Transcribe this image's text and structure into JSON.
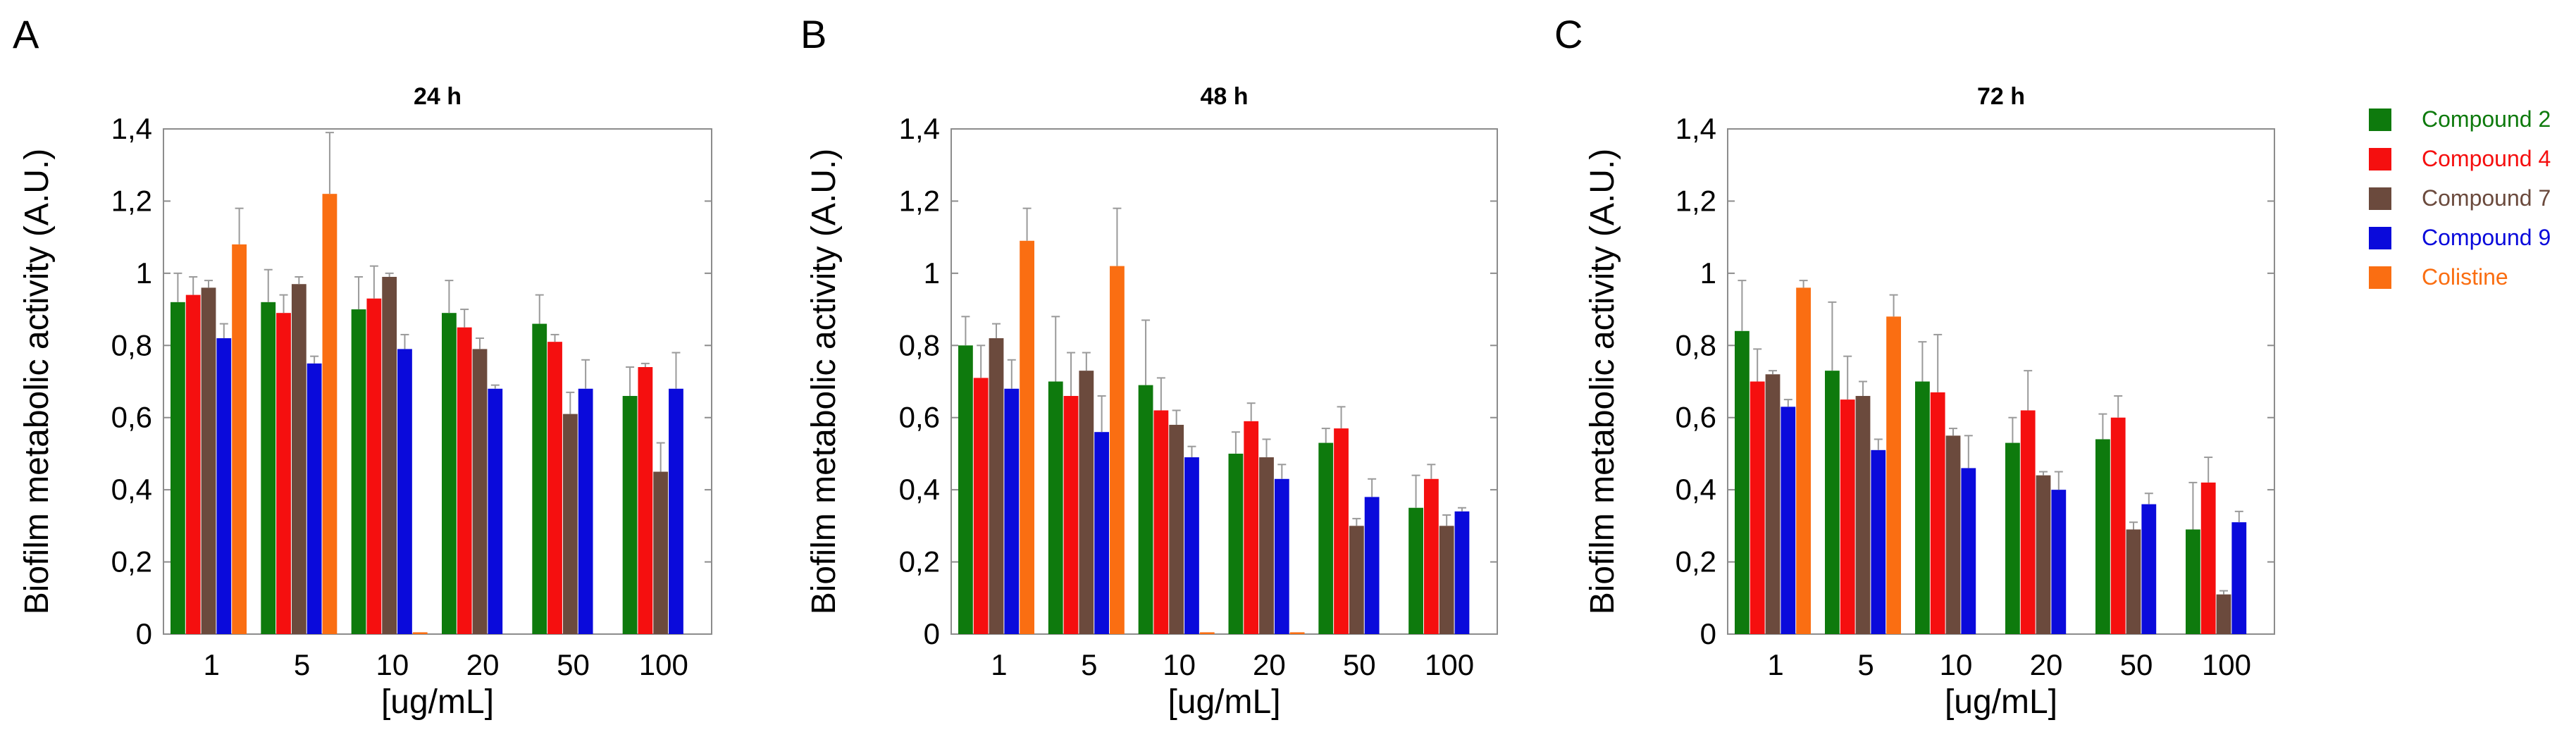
{
  "colors": {
    "compound_2": "#0E7A0D",
    "compound_4": "#F50F0F",
    "compound_7": "#6B4A3D",
    "compound_9": "#0A0ADB",
    "colistine": "#FA6E12",
    "axis": "#8C8C8C",
    "error_bar": "#9A9A9A"
  },
  "chart_data": [
    {
      "type": "bar",
      "panel": "A",
      "title": "24 h",
      "xlabel": "[ug/mL]",
      "ylabel": "Biofilm metabolic activity  (A.U.)",
      "ylim": [
        0,
        1.4
      ],
      "yticks": [
        "0",
        "0,2",
        "0,4",
        "0,6",
        "0,8",
        "1",
        "1,2",
        "1,4"
      ],
      "categories": [
        "1",
        "5",
        "10",
        "20",
        "50",
        "100"
      ],
      "grid": false,
      "series": [
        {
          "name": "Compound 2",
          "color_key": "compound_2",
          "values": [
            0.92,
            0.92,
            0.9,
            0.89,
            0.86,
            0.66
          ],
          "errors": [
            0.08,
            0.09,
            0.09,
            0.09,
            0.08,
            0.08
          ]
        },
        {
          "name": "Compound 4",
          "color_key": "compound_4",
          "values": [
            0.94,
            0.89,
            0.93,
            0.85,
            0.81,
            0.74
          ],
          "errors": [
            0.05,
            0.05,
            0.09,
            0.05,
            0.02,
            0.01
          ]
        },
        {
          "name": "Compound 7",
          "color_key": "compound_7",
          "values": [
            0.96,
            0.97,
            0.99,
            0.79,
            0.61,
            0.45
          ],
          "errors": [
            0.02,
            0.02,
            0.01,
            0.03,
            0.06,
            0.08
          ]
        },
        {
          "name": "Compound 9",
          "color_key": "compound_9",
          "values": [
            0.82,
            0.75,
            0.79,
            0.68,
            0.68,
            0.68
          ],
          "errors": [
            0.04,
            0.02,
            0.04,
            0.01,
            0.08,
            0.1
          ]
        },
        {
          "name": "Colistine",
          "color_key": "colistine",
          "values": [
            1.08,
            1.22,
            0.005,
            0.0,
            0.0,
            0.0
          ],
          "errors": [
            0.1,
            0.17,
            0,
            0,
            0,
            0
          ]
        }
      ]
    },
    {
      "type": "bar",
      "panel": "B",
      "title": "48 h",
      "xlabel": "[ug/mL]",
      "ylabel": "Biofilm metabolic activity  (A.U.)",
      "ylim": [
        0,
        1.4
      ],
      "yticks": [
        "0",
        "0,2",
        "0,4",
        "0,6",
        "0,8",
        "1",
        "1,2",
        "1,4"
      ],
      "categories": [
        "1",
        "5",
        "10",
        "20",
        "50",
        "100"
      ],
      "grid": false,
      "series": [
        {
          "name": "Compound 2",
          "color_key": "compound_2",
          "values": [
            0.8,
            0.7,
            0.69,
            0.5,
            0.53,
            0.35
          ],
          "errors": [
            0.08,
            0.18,
            0.18,
            0.06,
            0.04,
            0.09
          ]
        },
        {
          "name": "Compound 4",
          "color_key": "compound_4",
          "values": [
            0.71,
            0.66,
            0.62,
            0.59,
            0.57,
            0.43
          ],
          "errors": [
            0.09,
            0.12,
            0.09,
            0.05,
            0.06,
            0.04
          ]
        },
        {
          "name": "Compound 7",
          "color_key": "compound_7",
          "values": [
            0.82,
            0.73,
            0.58,
            0.49,
            0.3,
            0.3
          ],
          "errors": [
            0.04,
            0.05,
            0.04,
            0.05,
            0.02,
            0.03
          ]
        },
        {
          "name": "Compound 9",
          "color_key": "compound_9",
          "values": [
            0.68,
            0.56,
            0.49,
            0.43,
            0.38,
            0.34
          ],
          "errors": [
            0.08,
            0.1,
            0.03,
            0.04,
            0.05,
            0.01
          ]
        },
        {
          "name": "Colistine",
          "color_key": "colistine",
          "values": [
            1.09,
            1.02,
            0.005,
            0.005,
            0.0,
            0.0
          ],
          "errors": [
            0.09,
            0.16,
            0,
            0,
            0,
            0
          ]
        }
      ]
    },
    {
      "type": "bar",
      "panel": "C",
      "title": "72 h",
      "xlabel": "[ug/mL]",
      "ylabel": "Biofilm metabolic activity  (A.U.)",
      "ylim": [
        0,
        1.4
      ],
      "yticks": [
        "0",
        "0,2",
        "0,4",
        "0,6",
        "0,8",
        "1",
        "1,2",
        "1,4"
      ],
      "categories": [
        "1",
        "5",
        "10",
        "20",
        "50",
        "100"
      ],
      "grid": false,
      "series": [
        {
          "name": "Compound 2",
          "color_key": "compound_2",
          "values": [
            0.84,
            0.73,
            0.7,
            0.53,
            0.54,
            0.29
          ],
          "errors": [
            0.14,
            0.19,
            0.11,
            0.07,
            0.07,
            0.13
          ]
        },
        {
          "name": "Compound 4",
          "color_key": "compound_4",
          "values": [
            0.7,
            0.65,
            0.67,
            0.62,
            0.6,
            0.42
          ],
          "errors": [
            0.09,
            0.12,
            0.16,
            0.11,
            0.06,
            0.07
          ]
        },
        {
          "name": "Compound 7",
          "color_key": "compound_7",
          "values": [
            0.72,
            0.66,
            0.55,
            0.44,
            0.29,
            0.11
          ],
          "errors": [
            0.01,
            0.04,
            0.02,
            0.01,
            0.02,
            0.01
          ]
        },
        {
          "name": "Compound 9",
          "color_key": "compound_9",
          "values": [
            0.63,
            0.51,
            0.46,
            0.4,
            0.36,
            0.31
          ],
          "errors": [
            0.02,
            0.03,
            0.09,
            0.05,
            0.03,
            0.03
          ]
        },
        {
          "name": "Colistine",
          "color_key": "colistine",
          "values": [
            0.96,
            0.88,
            0.0,
            0.0,
            0.0,
            0.0
          ],
          "errors": [
            0.02,
            0.06,
            0,
            0,
            0,
            0
          ]
        }
      ]
    }
  ],
  "legend": {
    "placement": "right",
    "items": [
      {
        "label": "Compound 2",
        "color_key": "compound_2"
      },
      {
        "label": "Compound 4",
        "color_key": "compound_4"
      },
      {
        "label": "Compound 7",
        "color_key": "compound_7"
      },
      {
        "label": "Compound 9",
        "color_key": "compound_9"
      },
      {
        "label": "Colistine",
        "color_key": "colistine"
      }
    ]
  }
}
